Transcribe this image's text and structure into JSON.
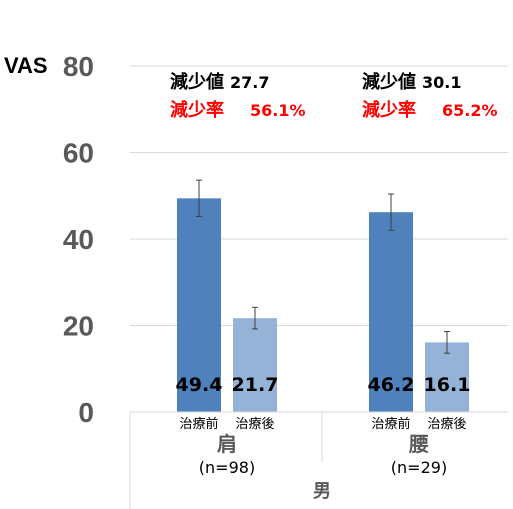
{
  "chart_data": {
    "type": "bar",
    "ylabel": "VAS",
    "ylim": [
      0,
      80
    ],
    "yticks": [
      0,
      20,
      40,
      60,
      80
    ],
    "grid": true,
    "outer_category": "男",
    "groups": [
      {
        "label": "肩",
        "n": "(n=98)",
        "bars": [
          {
            "label": "治療前",
            "value": 49.4,
            "value_label": "49.4",
            "err": 4.2
          },
          {
            "label": "治療後",
            "value": 21.7,
            "value_label": "21.7",
            "err": 2.5
          }
        ],
        "annotation": {
          "reduction_key": "減少値",
          "reduction_value": "27.7",
          "rate_key": "減少率",
          "rate_value": "56.1%"
        }
      },
      {
        "label": "腰",
        "n": "(n=29)",
        "bars": [
          {
            "label": "治療前",
            "value": 46.2,
            "value_label": "46.2",
            "err": 4.2
          },
          {
            "label": "治療後",
            "value": 16.1,
            "value_label": "16.1",
            "err": 2.5
          }
        ],
        "annotation": {
          "reduction_key": "減少値",
          "reduction_value": "30.1",
          "rate_key": "減少率",
          "rate_value": "65.2%"
        }
      }
    ],
    "colors": {
      "before": "#4f81bd",
      "after": "#95b3d7",
      "grid": "#d9d9d9",
      "error": "#404040"
    }
  }
}
